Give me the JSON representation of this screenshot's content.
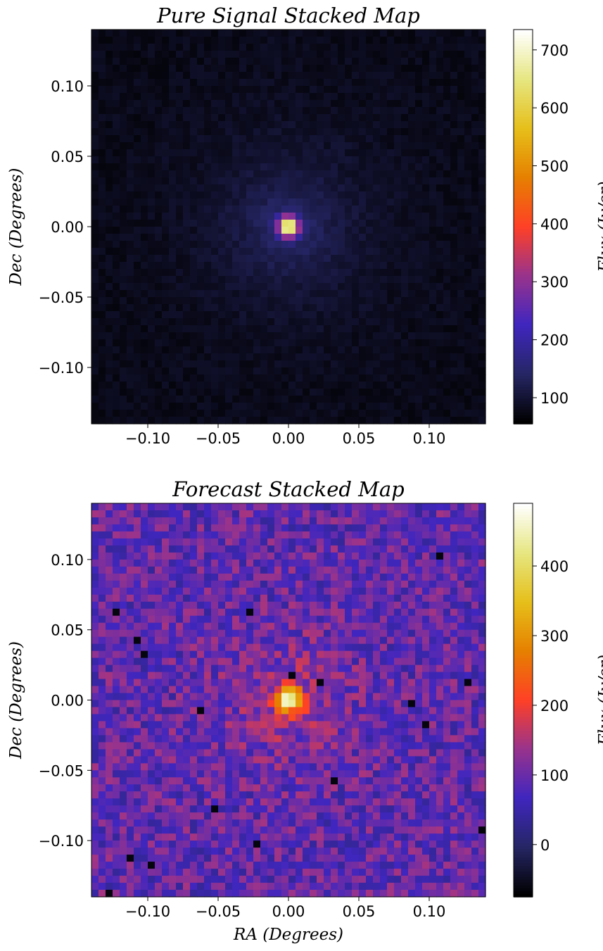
{
  "chart_data": [
    {
      "type": "heatmap",
      "title": "Pure Signal Stacked Map",
      "xlabel": "",
      "ylabel": "Dec (Degrees)",
      "xlim": [
        -0.14,
        0.14
      ],
      "ylim": [
        -0.14,
        0.14
      ],
      "grid_size": 56,
      "x_ticks": [
        "−0.10",
        "−0.05",
        "0.00",
        "0.05",
        "0.10"
      ],
      "y_ticks": [
        "0.10",
        "0.05",
        "0.00",
        "−0.05",
        "−0.10"
      ],
      "colorbar": {
        "label": "Flux (Jy/sr)",
        "range": [
          55,
          735
        ],
        "ticks": [
          100,
          200,
          300,
          400,
          500,
          600,
          700
        ],
        "colormap": "CMRmap"
      },
      "peak_value": 735,
      "peak_location": [
        0.0,
        0.0
      ],
      "background_level": 75,
      "noise": false
    },
    {
      "type": "heatmap",
      "title": "Forecast Stacked Map",
      "xlabel": "RA (Degrees)",
      "ylabel": "Dec (Degrees)",
      "xlim": [
        -0.14,
        0.14
      ],
      "ylim": [
        -0.14,
        0.14
      ],
      "grid_size": 56,
      "x_ticks": [
        "−0.10",
        "−0.05",
        "0.00",
        "0.05",
        "0.10"
      ],
      "y_ticks": [
        "0.10",
        "0.05",
        "0.00",
        "−0.05",
        "−0.10"
      ],
      "colorbar": {
        "label": "Flux (Jy/sr)",
        "range": [
          -75,
          490
        ],
        "ticks": [
          0,
          100,
          200,
          300,
          400
        ],
        "colormap": "CMRmap"
      },
      "peak_value": 490,
      "peak_location": [
        0.0,
        0.0
      ],
      "background_level": 90,
      "noise": true
    }
  ]
}
